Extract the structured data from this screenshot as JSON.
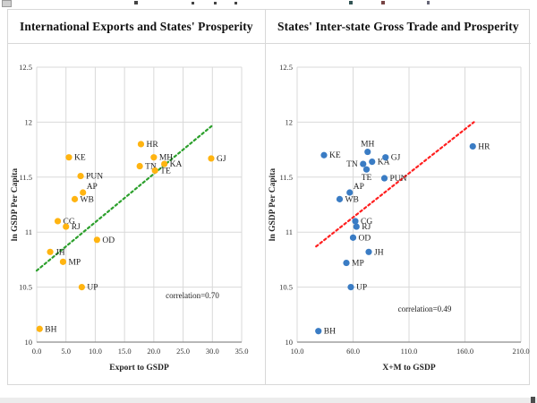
{
  "left_panel": {
    "title": "International Exports and States' Prosperity"
  },
  "right_panel": {
    "title": "States' Inter-state Gross Trade and Prosperity"
  },
  "chart_data": [
    {
      "type": "scatter",
      "title": "International Exports and States' Prosperity",
      "xlabel": "Export to GSDP",
      "ylabel": "ln GSDP Per Capita",
      "xlim": [
        0,
        35
      ],
      "ylim": [
        10,
        12.5
      ],
      "xticks": [
        0,
        5,
        10,
        15,
        20,
        25,
        30,
        35
      ],
      "xtick_labels": [
        "0.0",
        "5.0",
        "10.0",
        "15.0",
        "20.0",
        "25.0",
        "30.0",
        "35.0"
      ],
      "yticks": [
        10,
        10.5,
        11,
        11.5,
        12,
        12.5
      ],
      "ytick_labels": [
        "10",
        "10.5",
        "11",
        "11.5",
        "12",
        "12.5"
      ],
      "grid": true,
      "legend": "none",
      "marker_color": "#FFB411",
      "points": [
        {
          "label": "BH",
          "x": 0.5,
          "y": 10.12,
          "lpos": "right"
        },
        {
          "label": "JH",
          "x": 2.3,
          "y": 10.82,
          "lpos": "right"
        },
        {
          "label": "CG",
          "x": 3.6,
          "y": 11.1,
          "lpos": "right"
        },
        {
          "label": "RJ",
          "x": 5.0,
          "y": 11.05,
          "lpos": "right"
        },
        {
          "label": "MP",
          "x": 4.5,
          "y": 10.73,
          "lpos": "right"
        },
        {
          "label": "KE",
          "x": 5.5,
          "y": 11.68,
          "lpos": "right"
        },
        {
          "label": "WB",
          "x": 6.5,
          "y": 11.3,
          "lpos": "right"
        },
        {
          "label": "AP",
          "x": 7.9,
          "y": 11.36,
          "lpos": "above-right"
        },
        {
          "label": "PUN",
          "x": 7.5,
          "y": 11.51,
          "lpos": "right"
        },
        {
          "label": "UP",
          "x": 7.7,
          "y": 10.5,
          "lpos": "right"
        },
        {
          "label": "OD",
          "x": 10.3,
          "y": 10.93,
          "lpos": "right"
        },
        {
          "label": "HR",
          "x": 17.8,
          "y": 11.8,
          "lpos": "right"
        },
        {
          "label": "TN",
          "x": 17.6,
          "y": 11.6,
          "lpos": "right"
        },
        {
          "label": "MH",
          "x": 20.0,
          "y": 11.68,
          "lpos": "right"
        },
        {
          "label": "TE",
          "x": 20.2,
          "y": 11.56,
          "lpos": "right"
        },
        {
          "label": "KA",
          "x": 21.8,
          "y": 11.62,
          "lpos": "right"
        },
        {
          "label": "GJ",
          "x": 29.8,
          "y": 11.67,
          "lpos": "right"
        }
      ],
      "trendline": {
        "x1": 0,
        "y1": 10.65,
        "x2": 30,
        "y2": 11.97,
        "color": "#2CA02C"
      },
      "annotation": {
        "text": "correlation=0.70",
        "fx": 0.76,
        "fy": 0.84
      }
    },
    {
      "type": "scatter",
      "title": "States' Inter-state Gross Trade and Prosperity",
      "xlabel": "X+M to GSDP",
      "ylabel": "ln GSDP Per Capita",
      "xlim": [
        10,
        210
      ],
      "ylim": [
        10,
        12.5
      ],
      "xticks": [
        10,
        60,
        110,
        160,
        210
      ],
      "xtick_labels": [
        "10.0",
        "60.0",
        "110.0",
        "160.0",
        "210.0"
      ],
      "yticks": [
        10,
        10.5,
        11,
        11.5,
        12,
        12.5
      ],
      "ytick_labels": [
        "10",
        "10.5",
        "11",
        "11.5",
        "12",
        "12.5"
      ],
      "grid": true,
      "legend": "none",
      "marker_color": "#3A7CC4",
      "points": [
        {
          "label": "BH",
          "x": 29,
          "y": 10.1,
          "lpos": "right"
        },
        {
          "label": "MP",
          "x": 54,
          "y": 10.72,
          "lpos": "right"
        },
        {
          "label": "UP",
          "x": 58,
          "y": 10.5,
          "lpos": "right"
        },
        {
          "label": "OD",
          "x": 60,
          "y": 10.95,
          "lpos": "right"
        },
        {
          "label": "JH",
          "x": 74,
          "y": 10.82,
          "lpos": "right"
        },
        {
          "label": "CG",
          "x": 62,
          "y": 11.1,
          "lpos": "right"
        },
        {
          "label": "RJ",
          "x": 63,
          "y": 11.05,
          "lpos": "right"
        },
        {
          "label": "WB",
          "x": 48,
          "y": 11.3,
          "lpos": "right"
        },
        {
          "label": "AP",
          "x": 57,
          "y": 11.36,
          "lpos": "above-right"
        },
        {
          "label": "KE",
          "x": 34,
          "y": 11.7,
          "lpos": "right"
        },
        {
          "label": "TN",
          "x": 69,
          "y": 11.62,
          "lpos": "left"
        },
        {
          "label": "MH",
          "x": 73,
          "y": 11.73,
          "lpos": "above"
        },
        {
          "label": "KA",
          "x": 77,
          "y": 11.64,
          "lpos": "right"
        },
        {
          "label": "TE",
          "x": 72,
          "y": 11.57,
          "lpos": "below"
        },
        {
          "label": "GJ",
          "x": 89,
          "y": 11.68,
          "lpos": "right"
        },
        {
          "label": "PUN",
          "x": 88,
          "y": 11.49,
          "lpos": "right"
        },
        {
          "label": "HR",
          "x": 167,
          "y": 11.78,
          "lpos": "right"
        }
      ],
      "trendline": {
        "x1": 27,
        "y1": 10.87,
        "x2": 168,
        "y2": 12.0,
        "color": "#FF1F1F"
      },
      "annotation": {
        "text": "correlation=0.49",
        "fx": 0.57,
        "fy": 0.89
      }
    }
  ],
  "colors": {
    "grid": "#D9D9D9",
    "axis": "#8C8C8C",
    "tick_text": "#333333",
    "label_text": "#1f1f1f"
  }
}
